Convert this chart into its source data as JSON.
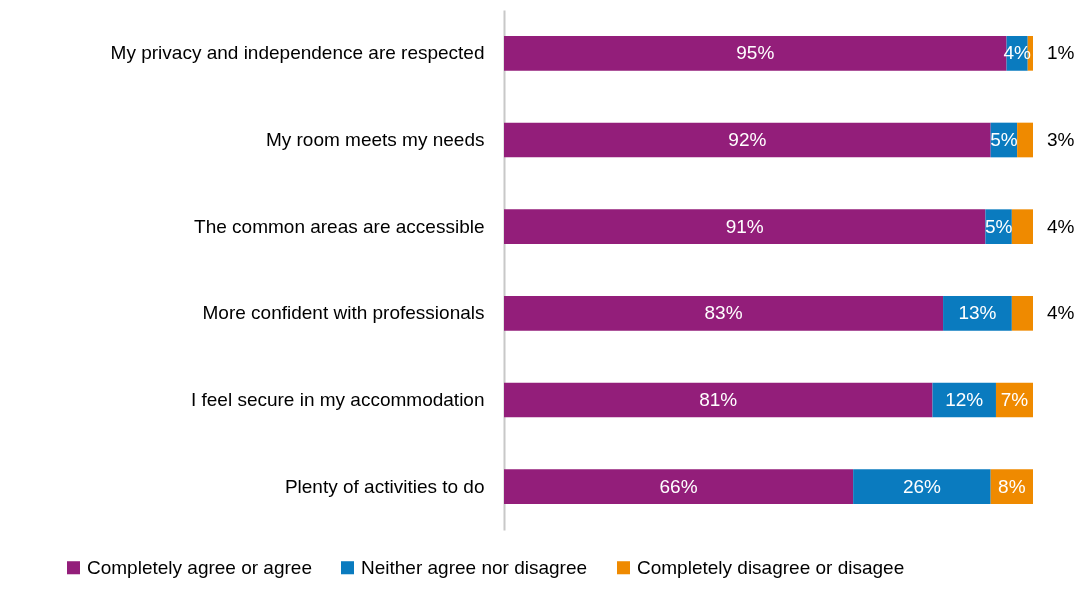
{
  "chart_data": {
    "type": "bar",
    "orientation": "horizontal",
    "stacked": true,
    "legend": "bottom",
    "grid": false,
    "categories": [
      "My privacy and independence are respected",
      "My room meets my needs",
      "The common areas are accessible",
      "More confident with professionals",
      "I feel secure in my accommodation",
      "Plenty of activities to do"
    ],
    "series": [
      {
        "name": "Completely agree or agree",
        "color": "#931e7a",
        "values": [
          95,
          92,
          91,
          83,
          81,
          66
        ],
        "value_labels": [
          "95%",
          "92%",
          "91%",
          "83%",
          "81%",
          "66%"
        ]
      },
      {
        "name": "Neither agree nor disagree",
        "color": "#0a7bbf",
        "values": [
          4,
          5,
          5,
          13,
          12,
          26
        ],
        "value_labels": [
          "4%",
          "5%",
          "5%",
          "13%",
          "12%",
          "26%"
        ]
      },
      {
        "name": "Completely disagree or disagee",
        "color": "#ef8a00",
        "values": [
          1,
          3,
          4,
          4,
          7,
          8
        ],
        "value_labels": [
          "1%",
          "3%",
          "4%",
          "4%",
          "7%",
          "8%"
        ]
      }
    ]
  }
}
